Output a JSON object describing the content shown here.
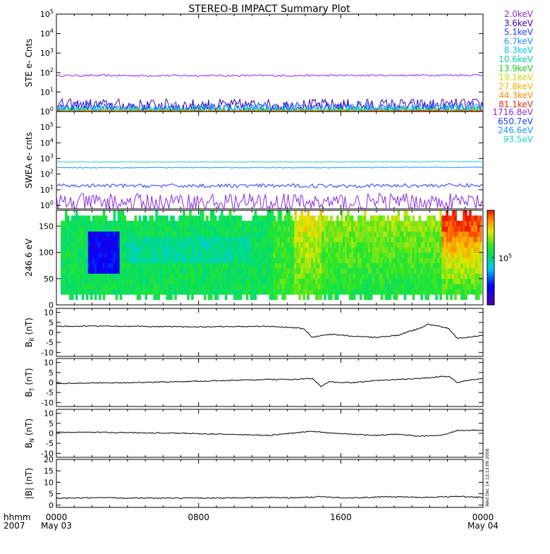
{
  "title": "STEREO-B IMPACT Summary Plot",
  "time_axis": {
    "left_labels": [
      "hhmm",
      "2007"
    ],
    "ticks": [
      {
        "label": "0000",
        "date": "May 03",
        "frac": 0.0
      },
      {
        "label": "0800",
        "date": "",
        "frac": 0.3333
      },
      {
        "label": "1600",
        "date": "",
        "frac": 0.6667
      },
      {
        "label": "0000",
        "date": "May 04",
        "frac": 1.0
      }
    ]
  },
  "side_note": "Wed Dec 14 12:13:09 2008",
  "chart_data": [
    {
      "type": "line",
      "panel": "ste",
      "ylabel": "STE e- Cnts",
      "yscale": "log",
      "ylim": [
        1,
        100000
      ],
      "yticks": [
        "10^0",
        "10^1",
        "10^2",
        "10^3",
        "10^4",
        "10^5"
      ],
      "series": [
        {
          "name": "2.0keV",
          "color": "#8a2be2",
          "level": 70,
          "noise": 0.05
        },
        {
          "name": "3.6keV",
          "color": "#3a00aa",
          "level": 2.0,
          "noise": 0.35
        },
        {
          "name": "5.1keV",
          "color": "#1e3cff",
          "level": 1.6,
          "noise": 0.3
        },
        {
          "name": "6.7keV",
          "color": "#1e90ff",
          "level": 1.3,
          "noise": 0.25
        },
        {
          "name": "8.3keV",
          "color": "#00c8e0",
          "level": 1.2,
          "noise": 0.2
        },
        {
          "name": "10.6keV",
          "color": "#00d8a0",
          "level": 1.1,
          "noise": 0.15
        },
        {
          "name": "13.9keV",
          "color": "#22cc22",
          "level": 1.05,
          "noise": 0.1
        },
        {
          "name": "19.1keV",
          "color": "#c8d800",
          "level": 1.05,
          "noise": 0.1
        },
        {
          "name": "27.8keV",
          "color": "#f0b400",
          "level": 1.02,
          "noise": 0.05
        },
        {
          "name": "44.3keV",
          "color": "#ff8c00",
          "level": 1.02,
          "noise": 0.05
        },
        {
          "name": "81.1keV",
          "color": "#e03010",
          "level": 1.01,
          "noise": 0.03
        }
      ]
    },
    {
      "type": "line",
      "panel": "swea",
      "ylabel": "SWEA e- cnts",
      "yscale": "log",
      "ylim": [
        0.6,
        1000000
      ],
      "yticks": [
        "10^0",
        "10^1",
        "10^2",
        "10^3",
        "10^4",
        "10^5"
      ],
      "series": [
        {
          "name": "1716.8eV",
          "color": "#8a2be2",
          "level": 1.5,
          "noise": 0.6
        },
        {
          "name": "650.7eV",
          "color": "#1e3cff",
          "level": 18,
          "noise": 0.12
        },
        {
          "name": "246.6eV",
          "color": "#1e90ff",
          "level": 260,
          "noise": 0.03
        },
        {
          "name": "93.5eV",
          "color": "#20d0d0",
          "level": 600,
          "noise": 0.03
        }
      ]
    },
    {
      "type": "heatmap",
      "panel": "pad",
      "ylabel": "246.6 eV",
      "ylim": [
        0,
        180
      ],
      "yticks": [
        "0",
        "50",
        "100",
        "150"
      ],
      "colorbar_label": "10^5"
    },
    {
      "type": "line",
      "panel": "br",
      "ylabel": "B",
      "ylabel_sub": "R",
      "ylabel_unit": "(nT)",
      "ylim": [
        -12,
        12
      ],
      "yticks": [
        "-10",
        "-5",
        "0",
        "5",
        "10"
      ],
      "x": [
        0,
        0.1,
        0.2,
        0.3,
        0.4,
        0.5,
        0.55,
        0.58,
        0.6,
        0.62,
        0.65,
        0.7,
        0.75,
        0.8,
        0.82,
        0.85,
        0.87,
        0.9,
        0.92,
        0.94,
        0.96,
        1.0
      ],
      "y": [
        3,
        3.2,
        3.0,
        2.8,
        2.9,
        3.0,
        2.5,
        2.0,
        -2.5,
        -1.5,
        -1.0,
        -2,
        -2.5,
        -1.5,
        0,
        2,
        4,
        3,
        2,
        -3,
        -2.5,
        -1.5
      ]
    },
    {
      "type": "line",
      "panel": "bt",
      "ylabel": "B",
      "ylabel_sub": "T",
      "ylabel_unit": "(nT)",
      "ylim": [
        -12,
        12
      ],
      "yticks": [
        "-10",
        "-5",
        "0",
        "5",
        "10"
      ],
      "x": [
        0,
        0.1,
        0.2,
        0.3,
        0.4,
        0.5,
        0.55,
        0.6,
        0.62,
        0.64,
        0.66,
        0.7,
        0.75,
        0.8,
        0.85,
        0.88,
        0.9,
        0.92,
        0.94,
        0.96,
        1.0
      ],
      "y": [
        -0.5,
        -0.2,
        0,
        0.5,
        1,
        1.5,
        1.5,
        2,
        -2,
        0.5,
        0,
        0,
        1,
        1.5,
        2,
        2.5,
        3,
        3,
        0,
        1,
        2
      ]
    },
    {
      "type": "line",
      "panel": "bn",
      "ylabel": "B",
      "ylabel_sub": "N",
      "ylabel_unit": "(nT)",
      "ylim": [
        -12,
        12
      ],
      "yticks": [
        "-10",
        "-5",
        "0",
        "5",
        "10"
      ],
      "x": [
        0,
        0.1,
        0.2,
        0.3,
        0.4,
        0.5,
        0.55,
        0.6,
        0.65,
        0.7,
        0.75,
        0.8,
        0.85,
        0.88,
        0.9,
        0.92,
        0.94,
        0.96,
        0.98,
        1.0
      ],
      "y": [
        0.5,
        0.5,
        0.3,
        0,
        -0.5,
        -1,
        0,
        1,
        0,
        -0.5,
        -1,
        -0.5,
        -1.5,
        -1,
        -1,
        0,
        1.5,
        1.5,
        1.5,
        1.3
      ]
    },
    {
      "type": "line",
      "panel": "bmag",
      "ylabel": "|B|",
      "ylabel_unit": "(nT)",
      "ylim": [
        -1,
        20
      ],
      "yticks": [
        "0",
        "5",
        "10",
        "15",
        "20"
      ],
      "x": [
        0,
        0.1,
        0.2,
        0.3,
        0.4,
        0.5,
        0.55,
        0.6,
        0.62,
        0.65,
        0.7,
        0.75,
        0.8,
        0.85,
        0.9,
        0.95,
        1.0
      ],
      "y": [
        3,
        3.2,
        3.1,
        3.0,
        3.2,
        3.3,
        3.2,
        3.5,
        3.8,
        3.3,
        3.2,
        3.5,
        3.7,
        3.4,
        3.6,
        3.8,
        3.3
      ]
    }
  ]
}
